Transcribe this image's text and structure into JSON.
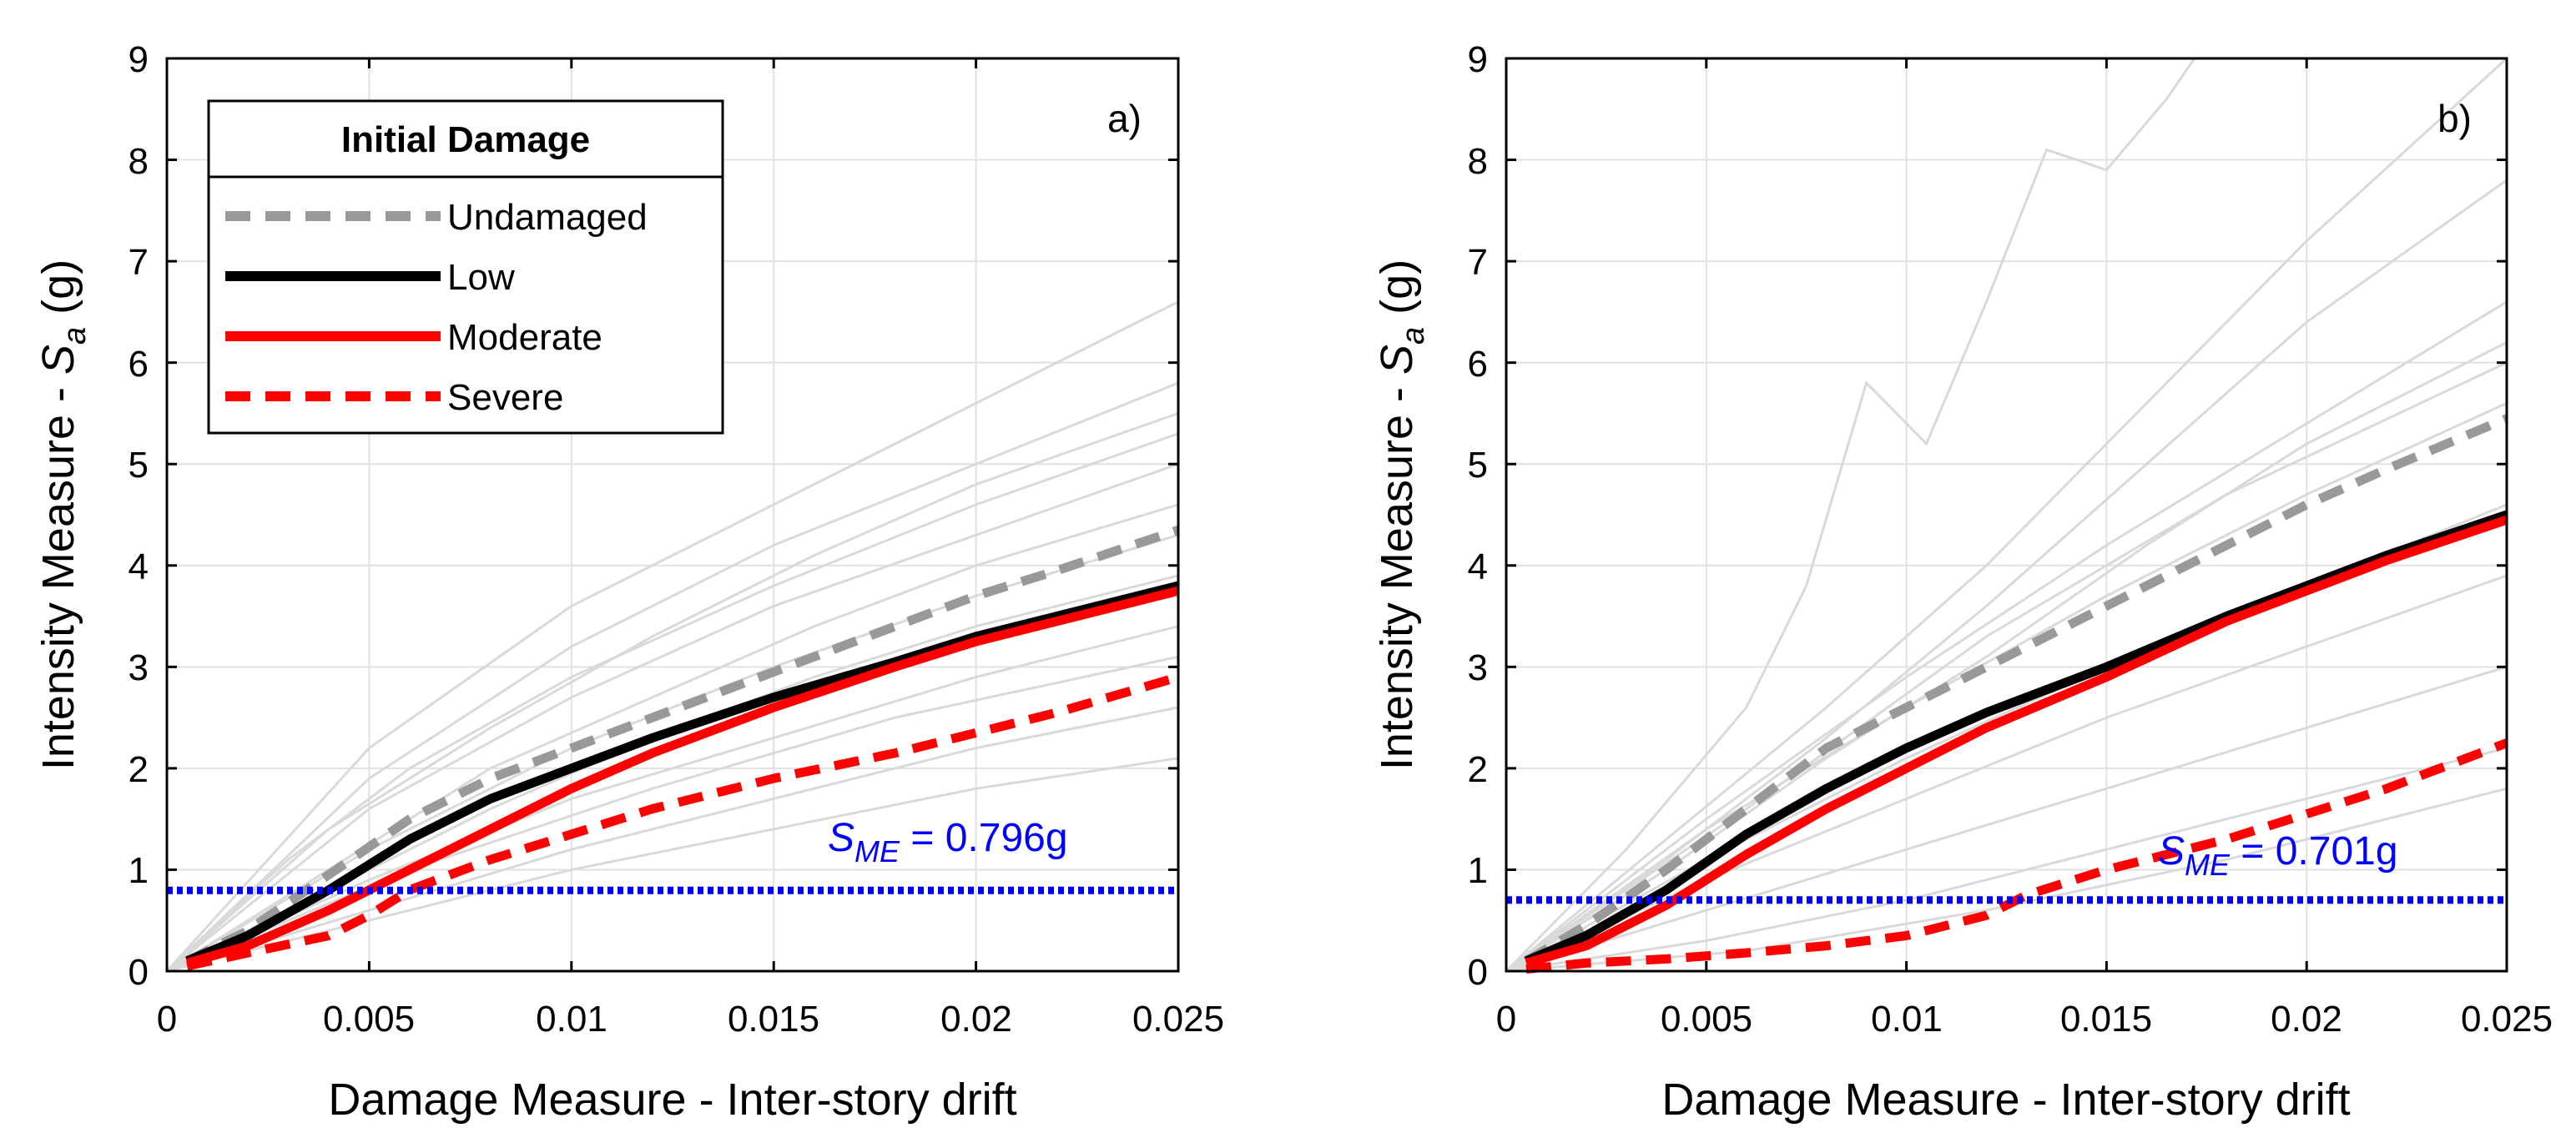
{
  "chart_data": [
    {
      "type": "line",
      "panel_label": "a)",
      "xlabel": "Damage Measure - Inter-story drift",
      "ylabel_prefix": "Intensity Measure -  ",
      "ylabel_symbol": "S",
      "ylabel_sub": "a",
      "ylabel_suffix": " (g)",
      "xlim": [
        0,
        0.025
      ],
      "ylim": [
        0,
        9
      ],
      "xticks": [
        "0",
        "0.005",
        "0.01",
        "0.015",
        "0.02",
        "0.025"
      ],
      "yticks": [
        "0",
        "1",
        "2",
        "3",
        "4",
        "5",
        "6",
        "7",
        "8",
        "9"
      ],
      "grid": true,
      "legend": {
        "title": "Initial Damage",
        "placement": "top-left",
        "entries": [
          "Undamaged",
          "Low",
          "Moderate",
          "Severe"
        ]
      },
      "annotation": {
        "symbol": "S",
        "sub": "ME",
        "text": " = 0.796g",
        "value": 0.796
      },
      "series": [
        {
          "name": "Undamaged",
          "color": "#999999",
          "style": "dashed",
          "x": [
            0.0005,
            0.002,
            0.004,
            0.006,
            0.008,
            0.01,
            0.012,
            0.015,
            0.018,
            0.02,
            0.022,
            0.025
          ],
          "y": [
            0.1,
            0.4,
            0.95,
            1.5,
            1.9,
            2.2,
            2.5,
            2.95,
            3.4,
            3.7,
            3.95,
            4.35
          ]
        },
        {
          "name": "Low",
          "color": "#000000",
          "style": "solid",
          "x": [
            0.0005,
            0.002,
            0.004,
            0.006,
            0.008,
            0.01,
            0.012,
            0.015,
            0.018,
            0.02,
            0.022,
            0.025
          ],
          "y": [
            0.1,
            0.35,
            0.8,
            1.3,
            1.7,
            2.0,
            2.3,
            2.7,
            3.05,
            3.3,
            3.5,
            3.8
          ]
        },
        {
          "name": "Moderate",
          "color": "#ff0000",
          "style": "solid",
          "x": [
            0.0005,
            0.002,
            0.004,
            0.006,
            0.008,
            0.01,
            0.012,
            0.015,
            0.018,
            0.02,
            0.022,
            0.025
          ],
          "y": [
            0.08,
            0.25,
            0.6,
            1.0,
            1.4,
            1.8,
            2.15,
            2.6,
            3.0,
            3.25,
            3.45,
            3.75
          ]
        },
        {
          "name": "Severe",
          "color": "#ff0000",
          "style": "dashed",
          "x": [
            0.0005,
            0.002,
            0.004,
            0.005,
            0.006,
            0.008,
            0.01,
            0.012,
            0.015,
            0.018,
            0.02,
            0.022,
            0.025
          ],
          "y": [
            0.05,
            0.18,
            0.35,
            0.55,
            0.8,
            1.1,
            1.35,
            1.6,
            1.9,
            2.15,
            2.35,
            2.55,
            2.9
          ]
        }
      ],
      "background_series": [
        {
          "x": [
            0,
            0.005,
            0.01,
            0.015,
            0.02,
            0.025
          ],
          "y": [
            0,
            2.2,
            3.6,
            4.6,
            5.6,
            6.6
          ]
        },
        {
          "x": [
            0,
            0.005,
            0.01,
            0.015,
            0.02,
            0.025
          ],
          "y": [
            0,
            1.9,
            3.2,
            4.2,
            5.0,
            5.8
          ]
        },
        {
          "x": [
            0,
            0.005,
            0.01,
            0.015,
            0.02,
            0.025
          ],
          "y": [
            0,
            1.6,
            2.7,
            3.6,
            4.3,
            5.0
          ]
        },
        {
          "x": [
            0,
            0.005,
            0.01,
            0.015,
            0.02,
            0.025
          ],
          "y": [
            0,
            1.2,
            2.2,
            3.0,
            3.7,
            4.3
          ]
        },
        {
          "x": [
            0,
            0.005,
            0.01,
            0.015,
            0.02,
            0.025
          ],
          "y": [
            0,
            0.9,
            1.7,
            2.3,
            2.9,
            3.4
          ]
        },
        {
          "x": [
            0,
            0.005,
            0.01,
            0.015,
            0.02,
            0.025
          ],
          "y": [
            0,
            0.6,
            1.2,
            1.7,
            2.2,
            2.6
          ]
        },
        {
          "x": [
            0,
            0.005,
            0.01,
            0.015,
            0.02,
            0.025
          ],
          "y": [
            0,
            0.5,
            1.0,
            1.4,
            1.8,
            2.1
          ]
        },
        {
          "x": [
            0,
            0.004,
            0.008,
            0.012,
            0.016,
            0.02,
            0.025
          ],
          "y": [
            0,
            1.0,
            2.0,
            2.7,
            3.4,
            4.0,
            4.6
          ]
        },
        {
          "x": [
            0,
            0.004,
            0.008,
            0.012,
            0.016,
            0.02,
            0.025
          ],
          "y": [
            0,
            0.8,
            1.6,
            2.3,
            2.9,
            3.4,
            3.9
          ]
        },
        {
          "x": [
            0,
            0.004,
            0.008,
            0.012,
            0.016,
            0.02,
            0.025
          ],
          "y": [
            0,
            1.4,
            2.4,
            3.3,
            4.1,
            4.8,
            5.5
          ]
        },
        {
          "x": [
            0,
            0.003,
            0.006,
            0.01,
            0.015,
            0.02,
            0.025
          ],
          "y": [
            0,
            1.1,
            2.0,
            2.9,
            3.8,
            4.6,
            5.3
          ]
        },
        {
          "x": [
            0,
            0.006,
            0.012,
            0.018,
            0.025
          ],
          "y": [
            0,
            1.0,
            1.8,
            2.5,
            3.1
          ]
        }
      ]
    },
    {
      "type": "line",
      "panel_label": "b)",
      "xlabel": "Damage Measure - Inter-story drift",
      "ylabel_prefix": "Intensity Measure -  ",
      "ylabel_symbol": "S",
      "ylabel_sub": "a",
      "ylabel_suffix": " (g)",
      "xlim": [
        0,
        0.025
      ],
      "ylim": [
        0,
        9
      ],
      "xticks": [
        "0",
        "0.005",
        "0.01",
        "0.015",
        "0.02",
        "0.025"
      ],
      "yticks": [
        "0",
        "1",
        "2",
        "3",
        "4",
        "5",
        "6",
        "7",
        "8",
        "9"
      ],
      "grid": true,
      "annotation": {
        "symbol": "S",
        "sub": "ME",
        "text": " = 0.701g",
        "value": 0.701
      },
      "series": [
        {
          "name": "Undamaged",
          "color": "#999999",
          "style": "dashed",
          "x": [
            0.0005,
            0.002,
            0.004,
            0.006,
            0.008,
            0.01,
            0.012,
            0.015,
            0.018,
            0.02,
            0.022,
            0.025
          ],
          "y": [
            0.1,
            0.45,
            1.0,
            1.6,
            2.2,
            2.6,
            3.0,
            3.6,
            4.2,
            4.6,
            4.95,
            5.45
          ]
        },
        {
          "name": "Low",
          "color": "#000000",
          "style": "solid",
          "x": [
            0.0005,
            0.002,
            0.004,
            0.006,
            0.008,
            0.01,
            0.012,
            0.015,
            0.018,
            0.02,
            0.022,
            0.025
          ],
          "y": [
            0.1,
            0.35,
            0.8,
            1.35,
            1.8,
            2.2,
            2.55,
            3.0,
            3.5,
            3.8,
            4.1,
            4.5
          ]
        },
        {
          "name": "Moderate",
          "color": "#ff0000",
          "style": "solid",
          "x": [
            0.0005,
            0.002,
            0.004,
            0.006,
            0.008,
            0.01,
            0.012,
            0.015,
            0.018,
            0.02,
            0.022,
            0.025
          ],
          "y": [
            0.08,
            0.25,
            0.65,
            1.15,
            1.6,
            2.0,
            2.4,
            2.9,
            3.45,
            3.75,
            4.05,
            4.45
          ]
        },
        {
          "name": "Severe",
          "color": "#ff0000",
          "style": "dashed",
          "x": [
            0.0005,
            0.002,
            0.004,
            0.006,
            0.008,
            0.01,
            0.012,
            0.013,
            0.015,
            0.018,
            0.02,
            0.022,
            0.025
          ],
          "y": [
            0.02,
            0.08,
            0.12,
            0.18,
            0.25,
            0.35,
            0.55,
            0.75,
            1.0,
            1.3,
            1.55,
            1.8,
            2.25
          ]
        }
      ],
      "background_series": [
        {
          "x": [
            0,
            0.003,
            0.006,
            0.0075,
            0.009,
            0.0105,
            0.012,
            0.0135,
            0.015,
            0.0165,
            0.0172
          ],
          "y": [
            0,
            1.2,
            2.6,
            3.8,
            5.8,
            5.2,
            6.6,
            8.1,
            7.9,
            8.6,
            9.0
          ]
        },
        {
          "x": [
            0,
            0.004,
            0.008,
            0.012,
            0.016,
            0.02,
            0.025
          ],
          "y": [
            0,
            1.3,
            2.6,
            4.0,
            5.6,
            7.2,
            9.0
          ]
        },
        {
          "x": [
            0,
            0.004,
            0.008,
            0.012,
            0.016,
            0.02,
            0.025
          ],
          "y": [
            0,
            1.1,
            2.3,
            3.6,
            5.0,
            6.4,
            7.8
          ]
        },
        {
          "x": [
            0,
            0.005,
            0.01,
            0.015,
            0.02,
            0.025
          ],
          "y": [
            0,
            1.5,
            2.9,
            4.2,
            5.4,
            6.6
          ]
        },
        {
          "x": [
            0,
            0.005,
            0.01,
            0.015,
            0.02,
            0.025
          ],
          "y": [
            0,
            1.4,
            2.6,
            3.7,
            4.7,
            5.6
          ]
        },
        {
          "x": [
            0,
            0.005,
            0.01,
            0.015,
            0.02,
            0.025
          ],
          "y": [
            0,
            1.1,
            2.1,
            3.0,
            3.8,
            4.6
          ]
        },
        {
          "x": [
            0,
            0.005,
            0.01,
            0.015,
            0.02,
            0.025
          ],
          "y": [
            0,
            0.9,
            1.7,
            2.5,
            3.2,
            3.9
          ]
        },
        {
          "x": [
            0,
            0.005,
            0.01,
            0.015,
            0.02,
            0.025
          ],
          "y": [
            0,
            0.6,
            1.2,
            1.8,
            2.4,
            3.0
          ]
        },
        {
          "x": [
            0,
            0.005,
            0.01,
            0.015,
            0.02,
            0.025
          ],
          "y": [
            0,
            0.3,
            0.7,
            1.2,
            1.7,
            2.2
          ]
        },
        {
          "x": [
            0,
            0.006,
            0.012,
            0.018,
            0.025
          ],
          "y": [
            0,
            0.2,
            0.6,
            1.1,
            1.8
          ]
        },
        {
          "x": [
            0,
            0.004,
            0.008,
            0.012,
            0.016,
            0.02,
            0.025
          ],
          "y": [
            0,
            1.0,
            2.1,
            3.1,
            4.2,
            5.2,
            6.2
          ]
        },
        {
          "x": [
            0,
            0.006,
            0.012,
            0.018,
            0.025
          ],
          "y": [
            0,
            1.6,
            3.3,
            4.7,
            6.0
          ]
        }
      ]
    }
  ],
  "colors": {
    "axis": "#000000",
    "grid": "#e1e1e1",
    "background_lines": "#d9d9d9",
    "threshold": "#0000ff"
  }
}
